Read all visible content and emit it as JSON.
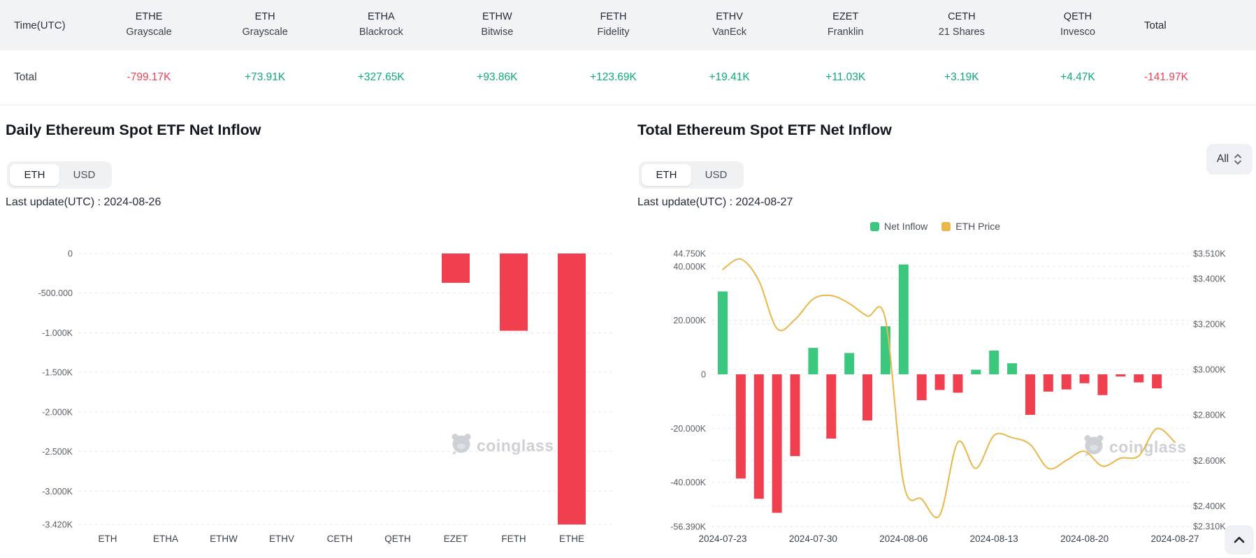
{
  "colors": {
    "positive_text": "#0cab7c",
    "negative_text": "#f43f55",
    "bar_green": "#3bc77e",
    "bar_red": "#f0404f",
    "price_line": "#ebb64a",
    "header_bg": "#f2f3f5",
    "grid": "#e7e9ec",
    "watermark": "#c8ccd1"
  },
  "table": {
    "time_col_header": "Time(UTC)",
    "row_label": "Total",
    "columns": [
      {
        "ticker": "ETHE",
        "issuer": "Grayscale",
        "value": "-799.17K",
        "direction": "neg"
      },
      {
        "ticker": "ETH",
        "issuer": "Grayscale",
        "value": "+73.91K",
        "direction": "pos"
      },
      {
        "ticker": "ETHA",
        "issuer": "Blackrock",
        "value": "+327.65K",
        "direction": "pos"
      },
      {
        "ticker": "ETHW",
        "issuer": "Bitwise",
        "value": "+93.86K",
        "direction": "pos"
      },
      {
        "ticker": "FETH",
        "issuer": "Fidelity",
        "value": "+123.69K",
        "direction": "pos"
      },
      {
        "ticker": "ETHV",
        "issuer": "VanEck",
        "value": "+19.41K",
        "direction": "pos"
      },
      {
        "ticker": "EZET",
        "issuer": "Franklin",
        "value": "+11.03K",
        "direction": "pos"
      },
      {
        "ticker": "CETH",
        "issuer": "21 Shares",
        "value": "+3.19K",
        "direction": "pos"
      },
      {
        "ticker": "QETH",
        "issuer": "Invesco",
        "value": "+4.47K",
        "direction": "pos"
      }
    ],
    "total_header": "Total",
    "total_value": "-141.97K",
    "total_direction": "neg"
  },
  "controls": {
    "unit_options": [
      "ETH",
      "USD"
    ],
    "active_unit": "ETH",
    "range_selector_value": "All"
  },
  "watermark_text": "coinglass",
  "chart_data": [
    {
      "type": "bar",
      "title": "Daily Ethereum Spot ETF Net Inflow",
      "last_update_label": "Last update(UTC) : 2024-08-26",
      "unit": "ETH (thousands shown as K)",
      "categories": [
        "ETH",
        "ETHA",
        "ETHW",
        "ETHV",
        "CETH",
        "QETH",
        "EZET",
        "FETH",
        "ETHE"
      ],
      "values": [
        0,
        0,
        0,
        0,
        0,
        0,
        -370,
        -975,
        -3420
      ],
      "y_ticks": [
        {
          "label": "0",
          "value": 0
        },
        {
          "label": "-500.000",
          "value": -500
        },
        {
          "label": "-1.000K",
          "value": -1000
        },
        {
          "label": "-1.500K",
          "value": -1500
        },
        {
          "label": "-2.000K",
          "value": -2000
        },
        {
          "label": "-2.500K",
          "value": -2500
        },
        {
          "label": "-3.000K",
          "value": -3000
        },
        {
          "label": "-3.420K",
          "value": -3420
        }
      ],
      "ylim": [
        -3420,
        0
      ],
      "grid": "dashed",
      "legend_position": "none"
    },
    {
      "type": "bar+line",
      "title": "Total Ethereum Spot ETF Net Inflow",
      "last_update_label": "Last update(UTC) : 2024-08-27",
      "legend": [
        {
          "label": "Net Inflow",
          "color": "#3bc77e",
          "type": "bar"
        },
        {
          "label": "ETH Price",
          "color": "#ebb64a",
          "type": "line"
        }
      ],
      "dates": [
        "2024-07-23",
        "2024-07-24",
        "2024-07-25",
        "2024-07-26",
        "2024-07-29",
        "2024-07-30",
        "2024-07-31",
        "2024-08-01",
        "2024-08-02",
        "2024-08-05",
        "2024-08-06",
        "2024-08-07",
        "2024-08-08",
        "2024-08-09",
        "2024-08-12",
        "2024-08-13",
        "2024-08-14",
        "2024-08-15",
        "2024-08-16",
        "2024-08-19",
        "2024-08-20",
        "2024-08-21",
        "2024-08-22",
        "2024-08-23",
        "2024-08-26",
        "2024-08-27"
      ],
      "series": [
        {
          "name": "Net Inflow",
          "type": "bar",
          "unit": "K ETH",
          "values": [
            30.7,
            -38.6,
            -46.1,
            -51.3,
            -30.3,
            9.8,
            -23.8,
            7.9,
            -17.1,
            17.8,
            40.7,
            -9.6,
            -5.8,
            -6.8,
            1.7,
            8.8,
            4.1,
            -15.0,
            -6.4,
            -5.6,
            -3.3,
            -7.7,
            -0.8,
            -3.0,
            -5.2,
            null
          ]
        },
        {
          "name": "ETH Price",
          "type": "line",
          "unit": "$K",
          "values": [
            3.44,
            3.485,
            3.39,
            3.18,
            3.22,
            3.31,
            3.325,
            3.29,
            3.235,
            3.22,
            2.5,
            2.43,
            2.36,
            2.68,
            2.565,
            2.71,
            2.7,
            2.67,
            2.565,
            2.6,
            2.64,
            2.575,
            2.61,
            2.62,
            2.74,
            2.68
          ]
        }
      ],
      "x_tick_indices": [
        0,
        5,
        10,
        15,
        20,
        25
      ],
      "x_tick_labels": [
        "2024-07-23",
        "2024-07-30",
        "2024-08-06",
        "2024-08-13",
        "2024-08-20",
        "2024-08-27"
      ],
      "left_y_ticks": [
        {
          "label": "44.750K",
          "value": 44.75
        },
        {
          "label": "40.000K",
          "value": 40
        },
        {
          "label": "20.000K",
          "value": 20
        },
        {
          "label": "0",
          "value": 0
        },
        {
          "label": "-20.000K",
          "value": -20
        },
        {
          "label": "-40.000K",
          "value": -40
        },
        {
          "label": "-56.390K",
          "value": -56.39
        }
      ],
      "right_y_ticks": [
        {
          "label": "$3.510K",
          "value": 3.51
        },
        {
          "label": "$3.400K",
          "value": 3.4
        },
        {
          "label": "$3.200K",
          "value": 3.2
        },
        {
          "label": "$3.000K",
          "value": 3.0
        },
        {
          "label": "$2.800K",
          "value": 2.8
        },
        {
          "label": "$2.600K",
          "value": 2.6
        },
        {
          "label": "$2.400K",
          "value": 2.4
        },
        {
          "label": "$2.310K",
          "value": 2.31
        }
      ],
      "left_ylim": [
        -56.39,
        44.75
      ],
      "right_ylim": [
        2.31,
        3.51
      ],
      "grid": "dashed",
      "legend_position": "top"
    }
  ]
}
